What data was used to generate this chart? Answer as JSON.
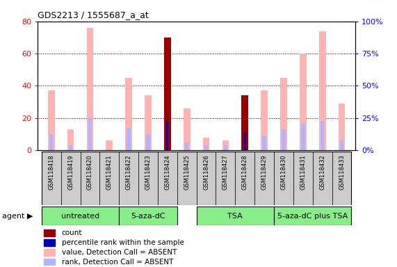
{
  "title": "GDS2213 / 1555687_a_at",
  "samples": [
    "GSM118418",
    "GSM118419",
    "GSM118420",
    "GSM118421",
    "GSM118422",
    "GSM118423",
    "GSM118424",
    "GSM118425",
    "GSM118426",
    "GSM118427",
    "GSM118428",
    "GSM118429",
    "GSM118430",
    "GSM118431",
    "GSM118432",
    "GSM118433"
  ],
  "value_absent": [
    37,
    13,
    76,
    6,
    45,
    34,
    70,
    26,
    8,
    6,
    34,
    37,
    45,
    60,
    74,
    29
  ],
  "rank_absent": [
    10,
    3,
    20,
    0,
    14,
    10,
    0,
    5,
    3,
    3,
    10,
    9,
    13,
    17,
    18,
    6
  ],
  "count_present": [
    0,
    0,
    0,
    0,
    0,
    0,
    70,
    0,
    0,
    0,
    34,
    0,
    0,
    0,
    0,
    0
  ],
  "percentile_present": [
    0,
    0,
    0,
    0,
    0,
    0,
    18,
    0,
    0,
    0,
    11,
    0,
    0,
    0,
    0,
    0
  ],
  "group_ranges": [
    [
      0,
      3,
      "untreated"
    ],
    [
      4,
      6,
      "5-aza-dC"
    ],
    [
      8,
      11,
      "TSA"
    ],
    [
      12,
      15,
      "5-aza-dC plus TSA"
    ]
  ],
  "ylim": [
    0,
    80
  ],
  "yticks": [
    0,
    20,
    40,
    60,
    80
  ],
  "y2ticks": [
    0,
    25,
    50,
    75,
    100
  ],
  "color_value_absent": "#ffb3b3",
  "color_rank_absent": "#b3b3ff",
  "color_count": "#990000",
  "color_percentile": "#0000bb",
  "bar_width": 0.35,
  "group_color": "#88ee88",
  "tick_box_color": "#cccccc",
  "legend_items": [
    {
      "color": "#990000",
      "label": "count"
    },
    {
      "color": "#0000bb",
      "label": "percentile rank within the sample"
    },
    {
      "color": "#ffb3b3",
      "label": "value, Detection Call = ABSENT"
    },
    {
      "color": "#b3b3ff",
      "label": "rank, Detection Call = ABSENT"
    }
  ]
}
